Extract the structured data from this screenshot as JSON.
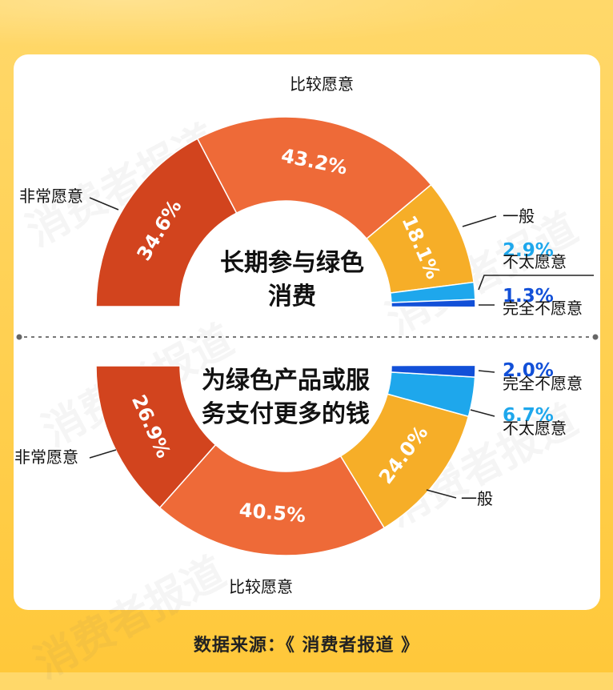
{
  "watermark_text": "消费者报道",
  "source": {
    "label": "数据来源：",
    "value": "《 消费者报道 》"
  },
  "colors": {
    "very_willing": "#D2441E",
    "fairly_willing": "#EE6A38",
    "neutral": "#F6AE28",
    "not_very": "#1EA7EC",
    "not_at_all": "#1250D8",
    "pct_not_very": "#1EA7EC",
    "pct_not_at_all": "#1250D8"
  },
  "chart_data": [
    {
      "type": "pie",
      "style": "half-donut",
      "orientation": "top",
      "title_lines": [
        "长期参与绿色",
        "消费"
      ],
      "slices": [
        {
          "label": "非常愿意",
          "value": 34.6,
          "pct_text": "34.6%",
          "color_key": "very_willing"
        },
        {
          "label": "比较愿意",
          "value": 43.2,
          "pct_text": "43.2%",
          "color_key": "fairly_willing"
        },
        {
          "label": "一般",
          "value": 18.1,
          "pct_text": "18.1%",
          "color_key": "neutral"
        },
        {
          "label": "不太愿意",
          "value": 2.9,
          "pct_text": "2.9%",
          "color_key": "not_very"
        },
        {
          "label": "完全不愿意",
          "value": 1.3,
          "pct_text": "1.3%",
          "color_key": "not_at_all"
        }
      ]
    },
    {
      "type": "pie",
      "style": "half-donut",
      "orientation": "bottom",
      "title_lines": [
        "为绿色产品或服",
        "务支付更多的钱"
      ],
      "slices": [
        {
          "label": "非常愿意",
          "value": 26.9,
          "pct_text": "26.9%",
          "color_key": "very_willing"
        },
        {
          "label": "比较愿意",
          "value": 40.5,
          "pct_text": "40.5%",
          "color_key": "fairly_willing"
        },
        {
          "label": "一般",
          "value": 24.0,
          "pct_text": "24.0%",
          "color_key": "neutral"
        },
        {
          "label": "不太愿意",
          "value": 6.7,
          "pct_text": "6.7%",
          "color_key": "not_very"
        },
        {
          "label": "完全不愿意",
          "value": 2.0,
          "pct_text": "2.0%",
          "color_key": "not_at_all"
        }
      ]
    }
  ]
}
